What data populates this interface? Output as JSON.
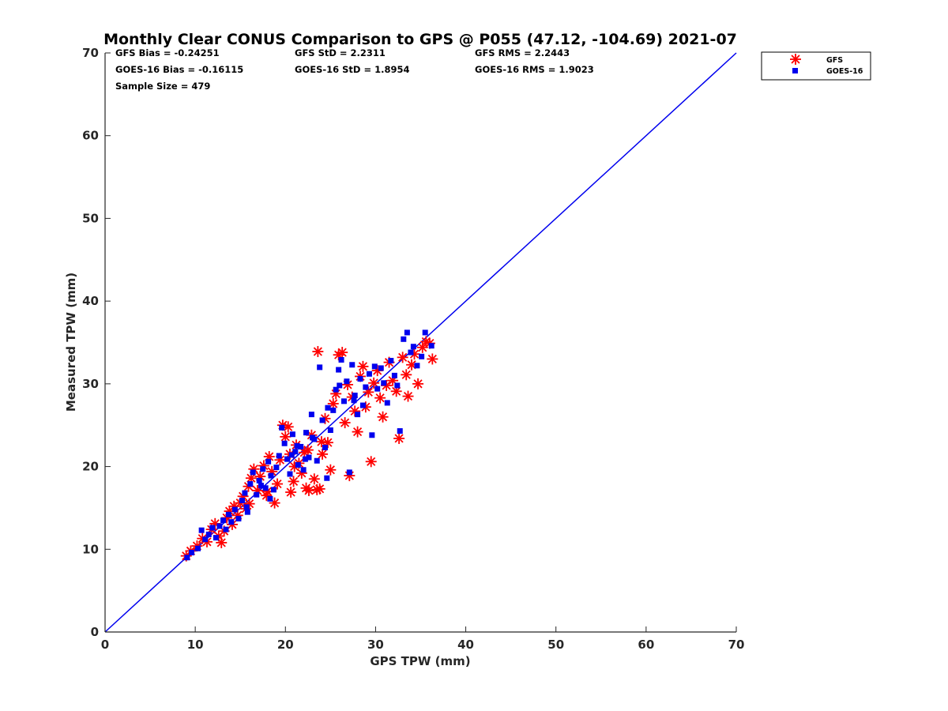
{
  "chart_data": {
    "type": "scatter",
    "title": "Monthly Clear CONUS Comparison to GPS @ P055 (47.12, -104.69) 2021-07",
    "xlabel": "GPS TPW (mm)",
    "ylabel": "Measured TPW (mm)",
    "xlim": [
      0,
      70
    ],
    "ylim": [
      0,
      70
    ],
    "xticks": [
      0,
      10,
      20,
      30,
      40,
      50,
      60,
      70
    ],
    "yticks": [
      0,
      10,
      20,
      30,
      40,
      50,
      60,
      70
    ],
    "grid": false,
    "legend_position": "top-right",
    "stats": [
      "GFS Bias = -0.24251",
      "GFS StD = 2.2311",
      "GFS RMS = 2.2443",
      "GOES-16 Bias = -0.16115",
      "GOES-16 StD = 1.8954",
      "GOES-16 RMS = 1.9023",
      "Sample Size = 479"
    ],
    "reference_line": {
      "x": [
        0,
        70
      ],
      "y": [
        0,
        70
      ],
      "color": "#0000ee"
    },
    "series": [
      {
        "name": "GFS",
        "marker": "asterisk",
        "color": "#ff0000",
        "points": [
          [
            9.0,
            9.2
          ],
          [
            9.5,
            9.8
          ],
          [
            10.2,
            10.4
          ],
          [
            10.8,
            11.3
          ],
          [
            11.3,
            10.9
          ],
          [
            11.8,
            12.4
          ],
          [
            12.2,
            13.1
          ],
          [
            12.6,
            11.6
          ],
          [
            12.9,
            10.8
          ],
          [
            13.2,
            12.2
          ],
          [
            13.5,
            13.8
          ],
          [
            13.8,
            14.6
          ],
          [
            14.1,
            13.0
          ],
          [
            14.3,
            15.2
          ],
          [
            14.7,
            14.1
          ],
          [
            15.0,
            15.6
          ],
          [
            15.3,
            16.4
          ],
          [
            15.6,
            14.9
          ],
          [
            15.9,
            17.6
          ],
          [
            16.2,
            18.6
          ],
          [
            16.5,
            19.7
          ],
          [
            16.9,
            17.1
          ],
          [
            17.2,
            18.8
          ],
          [
            17.6,
            20.1
          ],
          [
            17.9,
            16.5
          ],
          [
            18.2,
            21.2
          ],
          [
            18.5,
            19.4
          ],
          [
            18.8,
            15.6
          ],
          [
            19.1,
            17.9
          ],
          [
            19.4,
            20.8
          ],
          [
            19.7,
            25.0
          ],
          [
            20.0,
            23.6
          ],
          [
            20.3,
            24.8
          ],
          [
            20.6,
            16.9
          ],
          [
            20.9,
            18.2
          ],
          [
            21.2,
            22.6
          ],
          [
            21.5,
            20.4
          ],
          [
            21.8,
            19.2
          ],
          [
            22.1,
            21.7
          ],
          [
            22.3,
            17.4
          ],
          [
            22.6,
            17.1
          ],
          [
            22.9,
            23.8
          ],
          [
            23.2,
            18.5
          ],
          [
            23.5,
            17.2
          ],
          [
            23.8,
            17.3
          ],
          [
            23.6,
            33.9
          ],
          [
            24.1,
            21.5
          ],
          [
            24.4,
            25.8
          ],
          [
            24.7,
            22.9
          ],
          [
            25.0,
            19.6
          ],
          [
            25.3,
            27.6
          ],
          [
            25.6,
            28.8
          ],
          [
            25.9,
            33.5
          ],
          [
            26.3,
            33.8
          ],
          [
            26.6,
            25.3
          ],
          [
            26.9,
            29.9
          ],
          [
            27.1,
            18.9
          ],
          [
            27.4,
            28.4
          ],
          [
            27.7,
            26.7
          ],
          [
            28.0,
            24.2
          ],
          [
            28.3,
            30.9
          ],
          [
            28.6,
            32.1
          ],
          [
            28.9,
            27.2
          ],
          [
            29.2,
            29.0
          ],
          [
            29.5,
            20.6
          ],
          [
            29.8,
            30.1
          ],
          [
            30.2,
            31.6
          ],
          [
            30.5,
            28.3
          ],
          [
            30.8,
            26.0
          ],
          [
            31.2,
            29.8
          ],
          [
            31.5,
            32.6
          ],
          [
            31.9,
            30.4
          ],
          [
            32.3,
            29.1
          ],
          [
            32.6,
            23.4
          ],
          [
            33.0,
            33.2
          ],
          [
            33.4,
            31.1
          ],
          [
            33.6,
            28.5
          ],
          [
            34.0,
            32.3
          ],
          [
            34.3,
            33.6
          ],
          [
            34.7,
            30.0
          ],
          [
            35.2,
            34.4
          ],
          [
            35.6,
            35.1
          ],
          [
            36.0,
            34.9
          ],
          [
            36.3,
            33.0
          ],
          [
            24.0,
            23.0
          ],
          [
            21.0,
            20.0
          ],
          [
            18.0,
            17.0
          ],
          [
            16.0,
            15.5
          ],
          [
            22.5,
            22.0
          ],
          [
            20.5,
            21.5
          ]
        ]
      },
      {
        "name": "GOES-16",
        "marker": "square",
        "color": "#0000ee",
        "points": [
          [
            9.1,
            9.0
          ],
          [
            9.6,
            9.6
          ],
          [
            10.3,
            10.1
          ],
          [
            10.7,
            12.3
          ],
          [
            11.1,
            11.2
          ],
          [
            11.5,
            11.8
          ],
          [
            11.9,
            12.6
          ],
          [
            12.3,
            11.4
          ],
          [
            12.7,
            12.8
          ],
          [
            13.1,
            13.5
          ],
          [
            13.4,
            12.4
          ],
          [
            13.7,
            14.2
          ],
          [
            14.0,
            13.3
          ],
          [
            14.4,
            14.8
          ],
          [
            14.8,
            13.7
          ],
          [
            15.2,
            15.9
          ],
          [
            15.5,
            16.8
          ],
          [
            15.8,
            14.5
          ],
          [
            16.1,
            17.9
          ],
          [
            16.4,
            19.3
          ],
          [
            16.8,
            16.6
          ],
          [
            17.1,
            18.3
          ],
          [
            17.5,
            19.7
          ],
          [
            17.8,
            17.4
          ],
          [
            18.1,
            20.6
          ],
          [
            18.4,
            18.9
          ],
          [
            18.7,
            17.2
          ],
          [
            19.0,
            19.9
          ],
          [
            19.3,
            21.3
          ],
          [
            19.6,
            24.7
          ],
          [
            19.9,
            22.8
          ],
          [
            20.2,
            20.9
          ],
          [
            20.5,
            19.1
          ],
          [
            20.8,
            23.9
          ],
          [
            21.1,
            21.8
          ],
          [
            21.4,
            20.2
          ],
          [
            21.7,
            22.4
          ],
          [
            22.0,
            19.6
          ],
          [
            22.3,
            24.1
          ],
          [
            22.6,
            21.1
          ],
          [
            22.9,
            26.3
          ],
          [
            23.2,
            23.3
          ],
          [
            23.5,
            20.7
          ],
          [
            23.8,
            32.0
          ],
          [
            24.1,
            25.6
          ],
          [
            24.4,
            22.3
          ],
          [
            24.7,
            27.1
          ],
          [
            25.0,
            24.4
          ],
          [
            25.3,
            26.8
          ],
          [
            25.6,
            29.3
          ],
          [
            25.9,
            31.7
          ],
          [
            26.2,
            32.9
          ],
          [
            26.5,
            27.9
          ],
          [
            26.8,
            30.3
          ],
          [
            27.1,
            19.3
          ],
          [
            27.4,
            32.3
          ],
          [
            27.7,
            28.6
          ],
          [
            28.0,
            26.3
          ],
          [
            28.3,
            30.6
          ],
          [
            28.6,
            27.4
          ],
          [
            28.9,
            29.6
          ],
          [
            29.3,
            31.2
          ],
          [
            29.6,
            23.8
          ],
          [
            29.9,
            32.1
          ],
          [
            30.2,
            29.4
          ],
          [
            30.6,
            31.9
          ],
          [
            30.9,
            30.1
          ],
          [
            31.3,
            27.7
          ],
          [
            31.7,
            32.8
          ],
          [
            32.1,
            31.0
          ],
          [
            32.4,
            29.8
          ],
          [
            32.7,
            24.3
          ],
          [
            33.1,
            35.4
          ],
          [
            33.5,
            36.2
          ],
          [
            33.9,
            33.8
          ],
          [
            34.2,
            34.5
          ],
          [
            34.6,
            32.2
          ],
          [
            35.1,
            33.3
          ],
          [
            35.5,
            36.2
          ],
          [
            36.2,
            34.6
          ],
          [
            24.6,
            18.6
          ],
          [
            21.3,
            22.5
          ],
          [
            18.3,
            16.1
          ],
          [
            15.7,
            15.1
          ],
          [
            23.0,
            23.5
          ],
          [
            20.7,
            21.4
          ],
          [
            26.0,
            29.8
          ],
          [
            27.6,
            28.0
          ],
          [
            17.3,
            17.7
          ],
          [
            22.2,
            20.9
          ]
        ]
      }
    ]
  }
}
